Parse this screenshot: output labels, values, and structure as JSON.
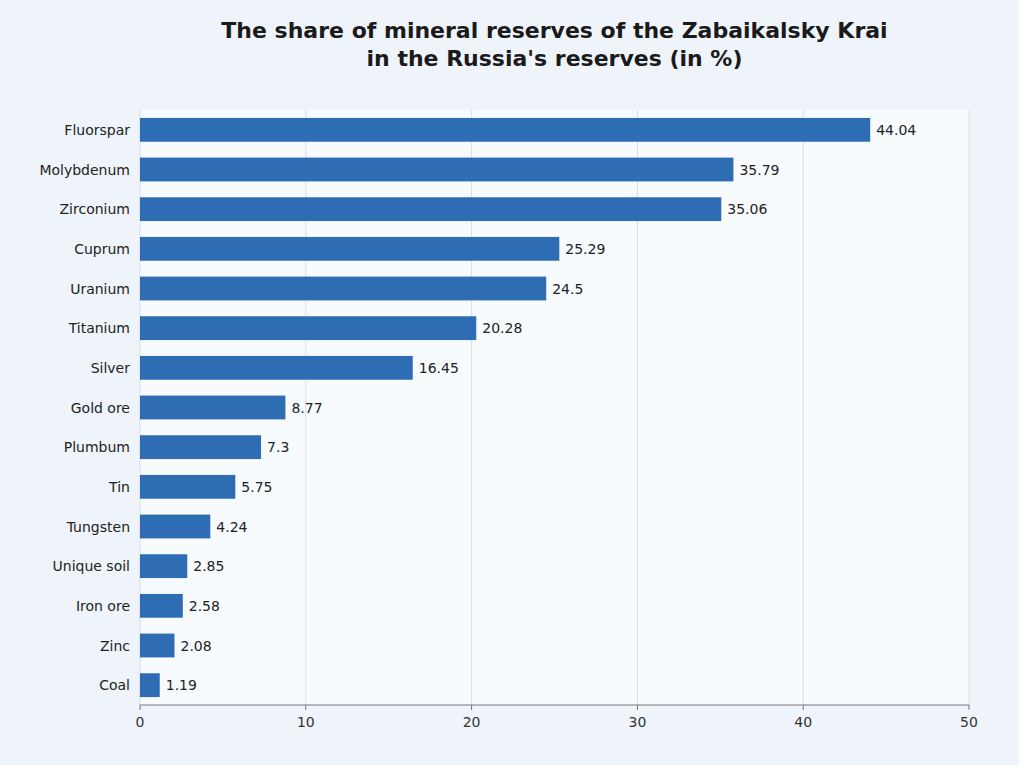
{
  "chart_data": {
    "type": "bar",
    "orientation": "horizontal",
    "title": "The share of mineral reserves of the Zabaikalsky Krai\nin the Russia's reserves (in %)",
    "categories": [
      "Fluorspar",
      "Molybdenum",
      "Zirconium",
      "Cuprum",
      "Uranium",
      "Titanium",
      "Silver",
      "Gold ore",
      "Plumbum",
      "Tin",
      "Tungsten",
      "Unique soil",
      "Iron ore",
      "Zinc",
      "Coal"
    ],
    "values": [
      44.04,
      35.79,
      35.06,
      25.29,
      24.5,
      20.28,
      16.45,
      8.77,
      7.3,
      5.75,
      4.24,
      2.85,
      2.58,
      2.08,
      1.19
    ],
    "color": "#2E6DB4",
    "xlim": [
      0,
      50
    ],
    "xticks": [
      0,
      10,
      20,
      30,
      40,
      50
    ],
    "grid": true,
    "data_labels": true
  }
}
